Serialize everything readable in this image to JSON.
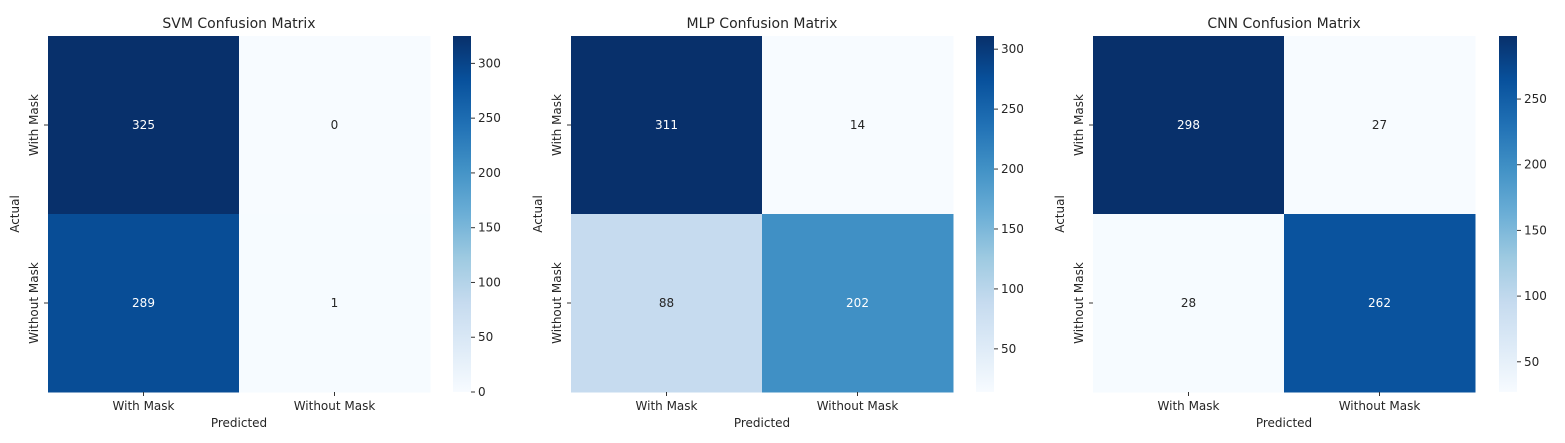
{
  "chart_data": [
    {
      "type": "heatmap",
      "title": "SVM Confusion Matrix",
      "xlabel": "Predicted",
      "ylabel": "Actual",
      "x_categories": [
        "With Mask",
        "Without Mask"
      ],
      "y_categories": [
        "With Mask",
        "Without Mask"
      ],
      "values": [
        [
          325,
          0
        ],
        [
          289,
          1
        ]
      ],
      "colormap": "Blues",
      "colorbar": {
        "min": 0,
        "max": 325,
        "ticks": [
          0,
          50,
          100,
          150,
          200,
          250,
          300
        ]
      }
    },
    {
      "type": "heatmap",
      "title": "MLP Confusion Matrix",
      "xlabel": "Predicted",
      "ylabel": "Actual",
      "x_categories": [
        "With Mask",
        "Without Mask"
      ],
      "y_categories": [
        "With Mask",
        "Without Mask"
      ],
      "values": [
        [
          311,
          14
        ],
        [
          88,
          202
        ]
      ],
      "colormap": "Blues",
      "colorbar": {
        "min": 14,
        "max": 311,
        "ticks": [
          50,
          100,
          150,
          200,
          250,
          300
        ]
      }
    },
    {
      "type": "heatmap",
      "title": "CNN Confusion Matrix",
      "xlabel": "Predicted",
      "ylabel": "Actual",
      "x_categories": [
        "With Mask",
        "Without Mask"
      ],
      "y_categories": [
        "With Mask",
        "Without Mask"
      ],
      "values": [
        [
          298,
          27
        ],
        [
          28,
          262
        ]
      ],
      "colormap": "Blues",
      "colorbar": {
        "min": 27,
        "max": 298,
        "ticks": [
          50,
          100,
          150,
          200,
          250
        ]
      }
    }
  ]
}
